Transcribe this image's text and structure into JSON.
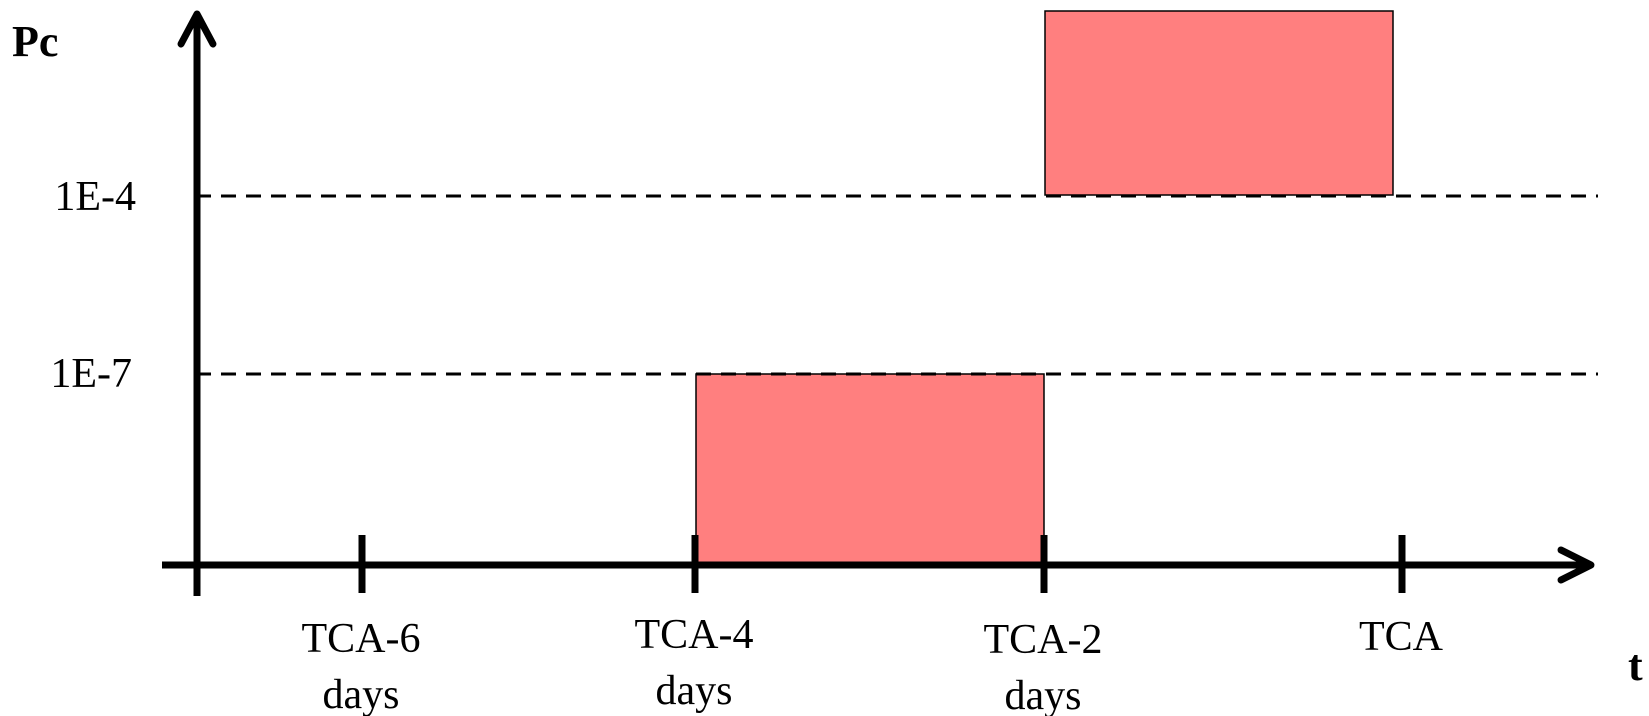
{
  "axes": {
    "y_label": "Pc",
    "x_label": "t"
  },
  "thresholds": [
    {
      "label": "1E-4"
    },
    {
      "label": "1E-7"
    }
  ],
  "ticks": [
    {
      "line1": "TCA-6",
      "line2": "days"
    },
    {
      "line1": "TCA-4",
      "line2": "days"
    },
    {
      "line1": "TCA-2",
      "line2": "days"
    },
    {
      "line1": "TCA",
      "line2": ""
    }
  ],
  "colors": {
    "box_fill": "#ff7f7f",
    "line": "#000000"
  },
  "boxes": [
    {
      "from": "TCA-4 days",
      "to": "TCA-2 days",
      "pc_band": "below 1E-7"
    },
    {
      "from": "TCA-2 days",
      "to": "TCA",
      "pc_band": "above 1E-4"
    }
  ]
}
